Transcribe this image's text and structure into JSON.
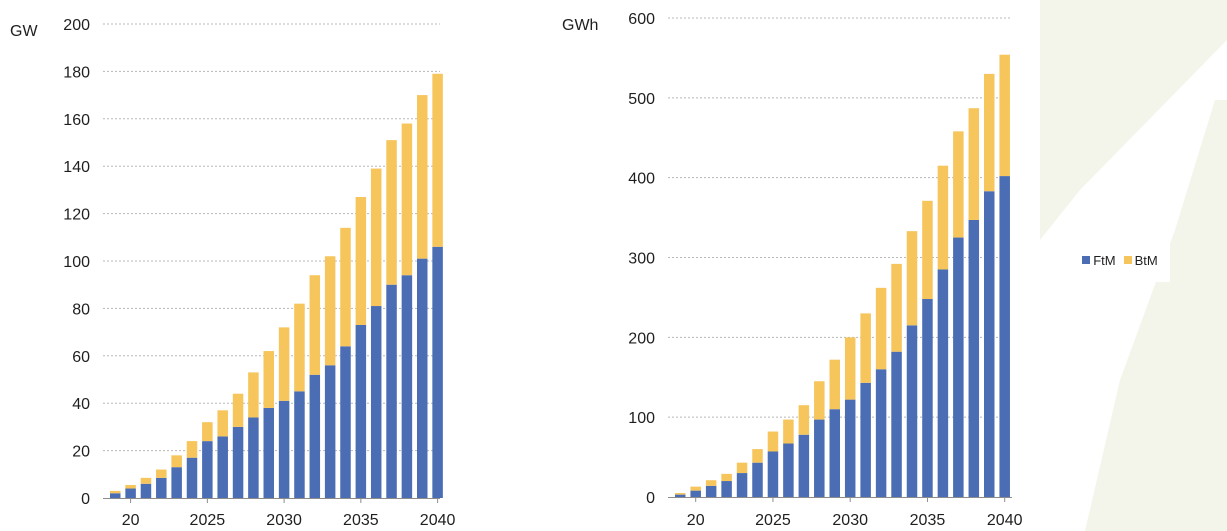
{
  "colors": {
    "ftm": "#4a6db3",
    "btm": "#f6c55c",
    "deco": "#f3f5ea"
  },
  "legend": [
    {
      "key": "ftm",
      "label": "FtM"
    },
    {
      "key": "btm",
      "label": "BtM"
    }
  ],
  "chart_data": [
    {
      "type": "bar",
      "stacked": true,
      "unit_label": "GW",
      "categories": [
        "2019",
        "2020",
        "2021",
        "2022",
        "2023",
        "2024",
        "2025",
        "2026",
        "2027",
        "2028",
        "2029",
        "2030",
        "2031",
        "2032",
        "2033",
        "2034",
        "2035",
        "2036",
        "2037",
        "2038",
        "2039",
        "2040"
      ],
      "x_tick_labels": [
        "20",
        "2025",
        "2030",
        "2035",
        "2040"
      ],
      "ylim": [
        0,
        200
      ],
      "y_ticks": [
        0,
        20,
        40,
        60,
        80,
        100,
        120,
        140,
        160,
        180,
        200
      ],
      "grid": true,
      "series": [
        {
          "name": "FtM",
          "color_key": "ftm",
          "values": [
            2,
            4,
            6,
            8.5,
            13,
            17,
            24,
            26,
            30,
            34,
            38,
            41,
            45,
            52,
            56,
            64,
            73,
            81,
            90,
            94,
            101,
            106
          ]
        },
        {
          "name": "BtM",
          "color_key": "btm",
          "values": [
            1,
            1.5,
            2.5,
            3.5,
            5,
            7,
            8,
            11,
            14,
            19,
            24,
            31,
            37,
            42,
            46,
            50,
            54,
            58,
            61,
            64,
            69,
            73
          ]
        }
      ]
    },
    {
      "type": "bar",
      "stacked": true,
      "unit_label": "GWh",
      "categories": [
        "2019",
        "2020",
        "2021",
        "2022",
        "2023",
        "2024",
        "2025",
        "2026",
        "2027",
        "2028",
        "2029",
        "2030",
        "2031",
        "2032",
        "2033",
        "2034",
        "2035",
        "2036",
        "2037",
        "2038",
        "2039",
        "2040"
      ],
      "x_tick_labels": [
        "20",
        "2025",
        "2030",
        "2035",
        "2040"
      ],
      "ylim": [
        0,
        600
      ],
      "y_ticks": [
        0,
        100,
        200,
        300,
        400,
        500,
        600
      ],
      "grid": true,
      "series": [
        {
          "name": "FtM",
          "color_key": "ftm",
          "values": [
            3,
            8,
            14,
            20,
            30,
            43,
            57,
            67,
            78,
            97,
            110,
            122,
            143,
            160,
            182,
            215,
            248,
            285,
            325,
            347,
            383,
            402
          ]
        },
        {
          "name": "BtM",
          "color_key": "btm",
          "values": [
            2,
            5,
            7,
            9,
            13,
            17,
            25,
            30,
            37,
            48,
            62,
            78,
            87,
            102,
            110,
            118,
            123,
            130,
            133,
            140,
            147,
            152
          ]
        }
      ]
    }
  ]
}
